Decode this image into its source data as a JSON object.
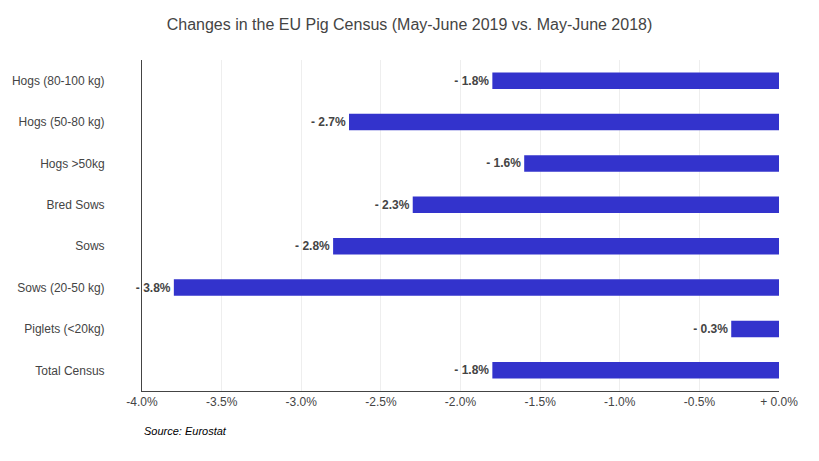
{
  "chart_data": {
    "type": "bar",
    "orientation": "horizontal",
    "title": "Changes in the EU Pig Census (May-June 2019 vs. May-June 2018)",
    "categories": [
      "Hogs (80-100 kg)",
      "Hogs (50-80 kg)",
      "Hogs >50kg",
      "Bred Sows",
      "Sows",
      "Sows (20-50 kg)",
      "Piglets (<20kg)",
      "Total Census"
    ],
    "values": [
      -1.8,
      -2.7,
      -1.6,
      -2.3,
      -2.8,
      -3.8,
      -0.3,
      -1.8
    ],
    "value_labels": [
      "- 1.8%",
      "- 2.7%",
      "- 1.6%",
      "- 2.3%",
      "- 2.8%",
      "- 3.8%",
      "- 0.3%",
      "- 1.8%"
    ],
    "data_labels": true,
    "color": "#3333cc",
    "xlim": [
      -4.0,
      0.0
    ],
    "xticks": [
      {
        "value": -4.0,
        "label": "-4.0%"
      },
      {
        "value": -3.5,
        "label": "-3.5%"
      },
      {
        "value": -3.0,
        "label": "-3.0%"
      },
      {
        "value": -2.5,
        "label": "-2.5%"
      },
      {
        "value": -2.0,
        "label": "-2.0%"
      },
      {
        "value": -1.5,
        "label": "-1.5%"
      },
      {
        "value": -1.0,
        "label": "-1.0%"
      },
      {
        "value": -0.5,
        "label": "-0.5%"
      },
      {
        "value": 0.0,
        "label": "+ 0.0%"
      }
    ],
    "grid": true,
    "annotations": [
      "Source: Eurostat"
    ]
  }
}
